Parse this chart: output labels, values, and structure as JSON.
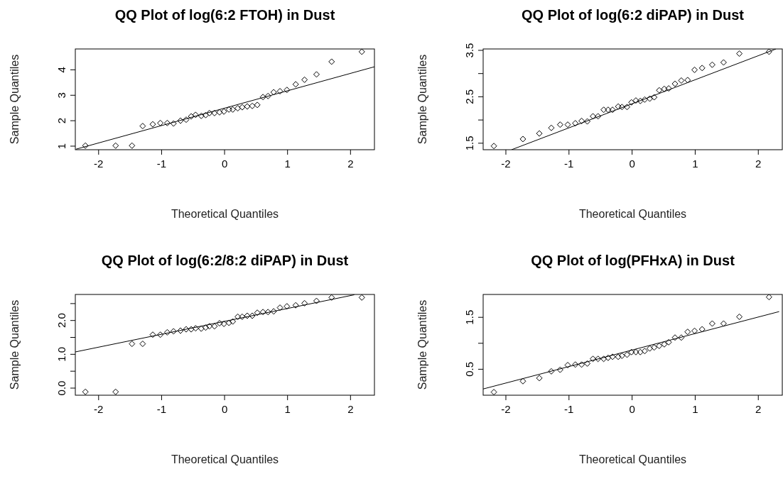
{
  "chart_data": [
    {
      "type": "scatter",
      "title": "QQ Plot of log(6:2 FTOH) in Dust",
      "xlabel": "Theoretical Quantiles",
      "ylabel": "Sample Quantiles",
      "xlim": [
        -2.37,
        2.38
      ],
      "ylim": [
        0.86,
        4.82
      ],
      "xticks": [
        -2,
        -1,
        0,
        1,
        2
      ],
      "yticks": [
        1,
        2,
        3,
        4
      ],
      "x": [
        -2.21,
        -1.73,
        -1.47,
        -1.3,
        -1.14,
        -1.02,
        -0.91,
        -0.81,
        -0.7,
        -0.61,
        -0.53,
        -0.46,
        -0.37,
        -0.3,
        -0.24,
        -0.16,
        -0.08,
        -0.01,
        0.07,
        0.13,
        0.21,
        0.28,
        0.36,
        0.44,
        0.52,
        0.61,
        0.69,
        0.78,
        0.88,
        0.99,
        1.13,
        1.27,
        1.46,
        1.7,
        2.18
      ],
      "series": [
        {
          "marker": "diamond",
          "color": "#000000",
          "values": [
            1.02,
            1.02,
            1.02,
            1.79,
            1.86,
            1.91,
            1.91,
            1.89,
            2.0,
            2.04,
            2.17,
            2.23,
            2.19,
            2.22,
            2.3,
            2.3,
            2.33,
            2.36,
            2.44,
            2.44,
            2.49,
            2.53,
            2.56,
            2.58,
            2.62,
            2.93,
            2.97,
            3.12,
            3.16,
            3.21,
            3.43,
            3.61,
            3.82,
            4.32,
            4.71
          ]
        },
        {
          "type": "line",
          "color": "#000000",
          "x": [
            -2.36,
            2.38
          ],
          "values": [
            0.88,
            4.12
          ]
        }
      ]
    },
    {
      "type": "scatter",
      "title": "QQ Plot of log(6:2 diPAP) in Dust",
      "xlabel": "Theoretical Quantiles",
      "ylabel": "Sample Quantiles",
      "xlim": [
        -2.36,
        2.38
      ],
      "ylim": [
        1.36,
        3.53
      ],
      "xticks": [
        -2,
        -1,
        0,
        1,
        2
      ],
      "yticks": [
        1.5,
        {
          "value": 2,
          "label": null
        },
        2.5,
        {
          "value": 3,
          "label": null
        },
        3.5
      ],
      "x": [
        -2.19,
        -1.73,
        -1.47,
        -1.28,
        -1.14,
        -1.02,
        -0.9,
        -0.8,
        -0.71,
        -0.62,
        -0.54,
        -0.45,
        -0.38,
        -0.31,
        -0.22,
        -0.16,
        -0.08,
        -0.01,
        0.06,
        0.13,
        0.2,
        0.28,
        0.35,
        0.43,
        0.51,
        0.58,
        0.68,
        0.78,
        0.88,
        0.99,
        1.11,
        1.27,
        1.45,
        1.7,
        2.17
      ],
      "series": [
        {
          "marker": "diamond",
          "color": "#000000",
          "values": [
            1.44,
            1.59,
            1.71,
            1.83,
            1.9,
            1.9,
            1.93,
            1.98,
            1.97,
            2.08,
            2.08,
            2.22,
            2.22,
            2.22,
            2.29,
            2.28,
            2.28,
            2.38,
            2.42,
            2.41,
            2.44,
            2.46,
            2.49,
            2.64,
            2.67,
            2.68,
            2.78,
            2.85,
            2.86,
            3.08,
            3.12,
            3.19,
            3.24,
            3.43,
            3.47
          ]
        },
        {
          "type": "line",
          "color": "#000000",
          "x": [
            -1.91,
            2.28
          ],
          "values": [
            1.36,
            3.53
          ]
        }
      ]
    },
    {
      "type": "scatter",
      "title": "QQ Plot of log(6:2/8:2 diPAP) in Dust",
      "xlabel": "Theoretical Quantiles",
      "ylabel": "Sample Quantiles",
      "xlim": [
        -2.37,
        2.38
      ],
      "ylim": [
        -0.21,
        2.77
      ],
      "xticks": [
        -2,
        -1,
        0,
        1,
        2
      ],
      "yticks": [
        {
          "value": 0,
          "label": "0.0"
        },
        {
          "value": 0.5,
          "label": null
        },
        {
          "value": 1,
          "label": "1.0"
        },
        {
          "value": 1.5,
          "label": null
        },
        {
          "value": 2,
          "label": "2.0"
        },
        {
          "value": 2.5,
          "label": null
        }
      ],
      "x": [
        -2.21,
        -1.73,
        -1.47,
        -1.3,
        -1.14,
        -1.02,
        -0.91,
        -0.81,
        -0.7,
        -0.61,
        -0.53,
        -0.46,
        -0.37,
        -0.3,
        -0.24,
        -0.16,
        -0.08,
        -0.01,
        0.07,
        0.13,
        0.21,
        0.28,
        0.36,
        0.44,
        0.52,
        0.61,
        0.69,
        0.78,
        0.88,
        0.99,
        1.13,
        1.27,
        1.46,
        1.7,
        2.18
      ],
      "series": [
        {
          "marker": "diamond",
          "color": "#000000",
          "values": [
            -0.11,
            -0.11,
            1.31,
            1.31,
            1.58,
            1.58,
            1.65,
            1.68,
            1.7,
            1.74,
            1.74,
            1.77,
            1.76,
            1.79,
            1.83,
            1.83,
            1.92,
            1.9,
            1.93,
            1.97,
            2.11,
            2.11,
            2.14,
            2.14,
            2.23,
            2.25,
            2.25,
            2.27,
            2.38,
            2.42,
            2.45,
            2.51,
            2.58,
            2.68,
            2.68
          ]
        },
        {
          "type": "line",
          "color": "#000000",
          "x": [
            -2.37,
            2.06
          ],
          "values": [
            1.07,
            2.76
          ]
        }
      ]
    },
    {
      "type": "scatter",
      "title": "QQ Plot of log(PFHxA) in Dust",
      "xlabel": "Theoretical Quantiles",
      "ylabel": "Sample Quantiles",
      "xlim": [
        -2.36,
        2.38
      ],
      "ylim": [
        0,
        1.94
      ],
      "xticks": [
        -2,
        -1,
        0,
        1,
        2
      ],
      "yticks": [
        0.5,
        {
          "value": 1,
          "label": null
        },
        1.5
      ],
      "x": [
        -2.19,
        -1.73,
        -1.47,
        -1.28,
        -1.14,
        -1.02,
        -0.9,
        -0.8,
        -0.71,
        -0.62,
        -0.54,
        -0.45,
        -0.38,
        -0.31,
        -0.22,
        -0.16,
        -0.08,
        -0.01,
        0.06,
        0.13,
        0.2,
        0.28,
        0.35,
        0.43,
        0.51,
        0.58,
        0.68,
        0.78,
        0.88,
        0.99,
        1.11,
        1.27,
        1.45,
        1.7,
        2.17
      ],
      "series": [
        {
          "marker": "diamond",
          "color": "#000000",
          "values": [
            0.06,
            0.27,
            0.33,
            0.46,
            0.49,
            0.58,
            0.59,
            0.59,
            0.61,
            0.7,
            0.7,
            0.7,
            0.72,
            0.74,
            0.74,
            0.76,
            0.78,
            0.83,
            0.83,
            0.83,
            0.85,
            0.9,
            0.92,
            0.95,
            0.98,
            1.02,
            1.11,
            1.11,
            1.22,
            1.24,
            1.27,
            1.38,
            1.38,
            1.51,
            1.89
          ]
        },
        {
          "type": "line",
          "color": "#000000",
          "x": [
            -2.36,
            2.33
          ],
          "values": [
            0.12,
            1.61
          ]
        }
      ]
    }
  ]
}
